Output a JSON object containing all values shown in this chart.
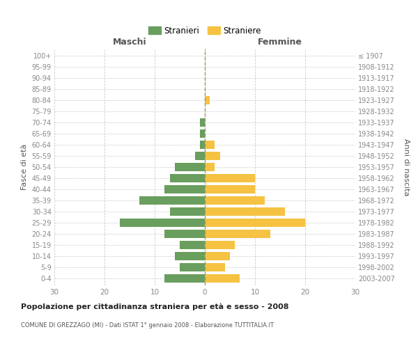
{
  "age_groups": [
    "0-4",
    "5-9",
    "10-14",
    "15-19",
    "20-24",
    "25-29",
    "30-34",
    "35-39",
    "40-44",
    "45-49",
    "50-54",
    "55-59",
    "60-64",
    "65-69",
    "70-74",
    "75-79",
    "80-84",
    "85-89",
    "90-94",
    "95-99",
    "100+"
  ],
  "birth_years": [
    "2003-2007",
    "1998-2002",
    "1993-1997",
    "1988-1992",
    "1983-1987",
    "1978-1982",
    "1973-1977",
    "1968-1972",
    "1963-1967",
    "1958-1962",
    "1953-1957",
    "1948-1952",
    "1943-1947",
    "1938-1942",
    "1933-1937",
    "1928-1932",
    "1923-1927",
    "1918-1922",
    "1913-1917",
    "1908-1912",
    "≤ 1907"
  ],
  "maschi": [
    8,
    5,
    6,
    5,
    8,
    17,
    7,
    13,
    8,
    7,
    6,
    2,
    1,
    1,
    1,
    0,
    0,
    0,
    0,
    0,
    0
  ],
  "femmine": [
    7,
    4,
    5,
    6,
    13,
    20,
    16,
    12,
    10,
    10,
    2,
    3,
    2,
    0,
    0,
    0,
    1,
    0,
    0,
    0,
    0
  ],
  "color_maschi": "#6a9e5e",
  "color_femmine": "#f5c242",
  "title": "Popolazione per cittadinanza straniera per età e sesso - 2008",
  "subtitle": "COMUNE DI GREZZAGO (MI) - Dati ISTAT 1° gennaio 2008 - Elaborazione TUTTITALIA.IT",
  "xlabel_left": "Maschi",
  "xlabel_right": "Femmine",
  "ylabel_left": "Fasce di età",
  "ylabel_right": "Anni di nascita",
  "legend_maschi": "Stranieri",
  "legend_femmine": "Straniere",
  "xlim": 30,
  "bg_color": "#ffffff",
  "grid_color": "#cccccc"
}
